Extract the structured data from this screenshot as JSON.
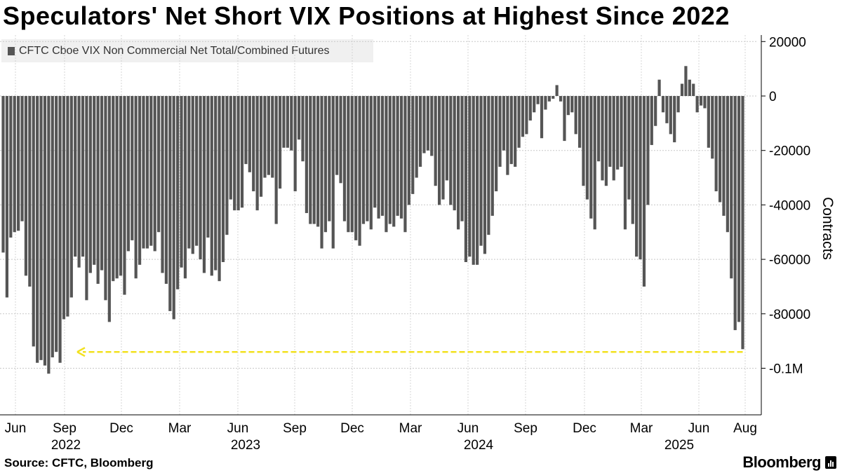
{
  "title": "Speculators' Net Short VIX Positions at Highest Since 2022",
  "legend": {
    "label": "CFTC Cboe VIX Non Commercial Net Total/Combined Futures",
    "color": "#555555"
  },
  "footer": {
    "source": "Source: CFTC, Bloomberg",
    "logo": "Bloomberg"
  },
  "chart_data": {
    "type": "bar",
    "ylabel": "Contracts",
    "y_ticks": [
      {
        "value": 20000,
        "label": "20000"
      },
      {
        "value": 0,
        "label": "0"
      },
      {
        "value": -20000,
        "label": "-20000"
      },
      {
        "value": -40000,
        "label": "-40000"
      },
      {
        "value": -60000,
        "label": "-60000"
      },
      {
        "value": -80000,
        "label": "-80000"
      },
      {
        "value": -100000,
        "label": "-0.1M"
      }
    ],
    "ylim": [
      -117000,
      20500
    ],
    "x_month_labels": [
      "Jun",
      "Sep",
      "Dec",
      "Mar",
      "Jun",
      "Sep",
      "Dec",
      "Mar",
      "Jun",
      "Sep",
      "Dec",
      "Mar",
      "Jun",
      "Aug"
    ],
    "x_year_labels": [
      "2022",
      "2023",
      "2024",
      "2025"
    ],
    "grid": true,
    "legend_position": "top-left",
    "bar_color": "#555555",
    "annotation": {
      "type": "dashed-arrow",
      "color": "#f2e11f",
      "value": -94000,
      "from": "latest",
      "to": "2022-09"
    },
    "values": [
      -57500,
      -74000,
      -52000,
      -50000,
      -49500,
      -46000,
      -66000,
      -70000,
      -92000,
      -98000,
      -97000,
      -99000,
      -102000,
      -96000,
      -94000,
      -98000,
      -82000,
      -81000,
      -74000,
      -59000,
      -63000,
      -59000,
      -75000,
      -65000,
      -62000,
      -69000,
      -64000,
      -75000,
      -83000,
      -68000,
      -67000,
      -66000,
      -73000,
      -57000,
      -53000,
      -67000,
      -62000,
      -56000,
      -56000,
      -55000,
      -57000,
      -50000,
      -65000,
      -69000,
      -79000,
      -82000,
      -71000,
      -63000,
      -67000,
      -56000,
      -58000,
      -55000,
      -60000,
      -65000,
      -52000,
      -66000,
      -64000,
      -68000,
      -61000,
      -51000,
      -38000,
      -42000,
      -42000,
      -41000,
      -25000,
      -28000,
      -35000,
      -42000,
      -37000,
      -30000,
      -29000,
      -30000,
      -47000,
      -34000,
      -19000,
      -19000,
      -20000,
      -35000,
      -16000,
      -24000,
      -43000,
      -47000,
      -47000,
      -48000,
      -56000,
      -50000,
      -46000,
      -56000,
      -29000,
      -32000,
      -46000,
      -50000,
      -50000,
      -53000,
      -55000,
      -47000,
      -46000,
      -49000,
      -41000,
      -45000,
      -44000,
      -50000,
      -47000,
      -48000,
      -44000,
      -45000,
      -50000,
      -40000,
      -36000,
      -30000,
      -26000,
      -21000,
      -20000,
      -22000,
      -33000,
      -40000,
      -38000,
      -31000,
      -40000,
      -42000,
      -49000,
      -46000,
      -61000,
      -59000,
      -62000,
      -62000,
      -55000,
      -58000,
      -51000,
      -44000,
      -35000,
      -26000,
      -20000,
      -29000,
      -25000,
      -26000,
      -19000,
      -15000,
      -14000,
      -9000,
      -6000,
      -3000,
      -15500,
      -5000,
      -2000,
      -1000,
      4000,
      -2000,
      -16500,
      -7000,
      -6000,
      -14000,
      -19000,
      -33000,
      -38000,
      -45000,
      -49000,
      -24000,
      -31000,
      -33000,
      -26000,
      -31000,
      -27000,
      -26000,
      -49000,
      -38000,
      -47000,
      -59000,
      -60000,
      -70000,
      -40000,
      -18000,
      -11000,
      6000,
      -6000,
      -10000,
      -14000,
      -17000,
      -6000,
      4500,
      11000,
      6000,
      4500,
      -6000,
      -3500,
      -4500,
      -19000,
      -23000,
      -35000,
      -39000,
      -44000,
      -50000,
      -67000,
      -86000,
      -83000,
      -93000
    ]
  }
}
